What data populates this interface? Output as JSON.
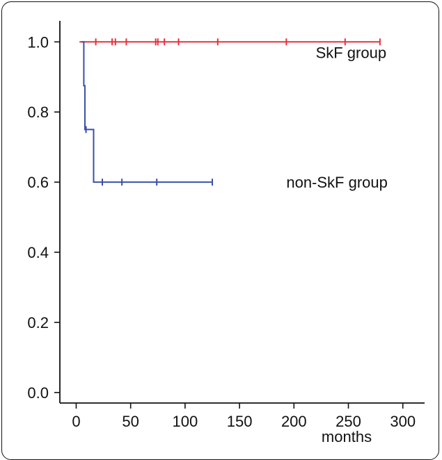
{
  "chart_data": {
    "type": "line",
    "title": "",
    "xlabel": "months",
    "ylabel": "",
    "xlim": [
      -15,
      320
    ],
    "ylim": [
      -0.03,
      1.06
    ],
    "x_ticks": [
      0,
      50,
      100,
      150,
      200,
      250,
      300
    ],
    "y_ticks": [
      0.0,
      0.2,
      0.4,
      0.6,
      0.8,
      1.0
    ],
    "y_tick_labels": [
      "0.0",
      "0.2",
      "0.4",
      "0.6",
      "0.8",
      "1.0"
    ],
    "grid": false,
    "series": [
      {
        "name": "SkF group",
        "color": "#e8303a",
        "step_x": [
          3,
          279
        ],
        "step_y": [
          1.0,
          1.0
        ],
        "censor_x": [
          18,
          33,
          36,
          46,
          73,
          75,
          81,
          94,
          130,
          193,
          247,
          279
        ],
        "censor_y": [
          1.0,
          1.0,
          1.0,
          1.0,
          1.0,
          1.0,
          1.0,
          1.0,
          1.0,
          1.0,
          1.0,
          1.0
        ]
      },
      {
        "name": "non-SkF group",
        "color": "#3a4fa8",
        "step_x": [
          5,
          7,
          8,
          10,
          16,
          27,
          43,
          74,
          125
        ],
        "step_y": [
          1.0,
          0.875,
          0.75,
          0.75,
          0.6,
          0.6,
          0.6,
          0.6,
          0.6
        ],
        "censor_x": [
          9,
          24,
          42,
          74,
          125
        ],
        "censor_y": [
          0.75,
          0.6,
          0.6,
          0.6,
          0.6
        ]
      }
    ],
    "annotations": [
      {
        "text": "SkF group",
        "x": 220,
        "y": 0.97
      },
      {
        "text": "non-SkF group",
        "x": 193,
        "y": 0.6
      }
    ]
  }
}
